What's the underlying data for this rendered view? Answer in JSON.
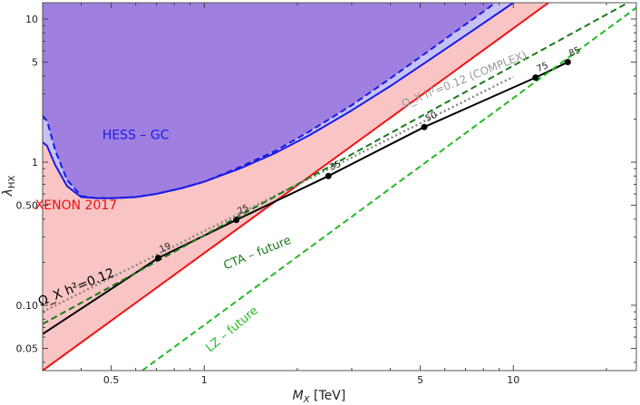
{
  "chart_data": {
    "type": "line",
    "x_scale": "log",
    "y_scale": "log",
    "xlim": [
      0.3,
      25
    ],
    "ylim": [
      0.035,
      13
    ],
    "xlabel_main": "M",
    "xlabel_sub": "X",
    "xlabel_unit": " [TeV]",
    "ylabel_main": "λ",
    "ylabel_sub": "HX",
    "x_ticks": [
      {
        "v": 0.5,
        "label": "0.5"
      },
      {
        "v": 1,
        "label": "1"
      },
      {
        "v": 5,
        "label": "5"
      },
      {
        "v": 10,
        "label": "10"
      }
    ],
    "y_ticks": [
      {
        "v": 0.05,
        "label": "0.05"
      },
      {
        "v": 0.1,
        "label": "0.10"
      },
      {
        "v": 0.5,
        "label": "0.50"
      },
      {
        "v": 1,
        "label": "1"
      },
      {
        "v": 5,
        "label": "5"
      },
      {
        "v": 10,
        "label": "10"
      }
    ],
    "colors": {
      "hess_fill": "#9f7fe0",
      "hess_band": "#c7c2f5",
      "hess_line": "#1a1ae6",
      "xenon_fill": "#f9c4c4",
      "xenon_line": "#ee1111",
      "relic": "#000000",
      "complex": "#888888",
      "cta": "#197a19",
      "lz": "#22bb22"
    },
    "regions": [
      {
        "name": "HESS - GC",
        "label_x": 0.6,
        "label_y": 1.45,
        "color": "#1a1ae6"
      },
      {
        "name": "XENON 2017",
        "label_x": 0.385,
        "label_y": 0.47,
        "color": "#ee1111"
      }
    ],
    "series": [
      {
        "name": "HESS - GC (solid)",
        "style": "solid",
        "x": [
          0.3,
          0.31,
          0.33,
          0.36,
          0.4,
          0.45,
          0.5,
          0.6,
          0.7,
          0.85,
          1.0,
          1.3,
          1.7,
          2.2,
          3.0,
          4.0,
          5.5,
          7.5,
          10,
          13
        ],
        "y": [
          1.38,
          1.3,
          0.95,
          0.68,
          0.57,
          0.56,
          0.56,
          0.57,
          0.6,
          0.66,
          0.73,
          0.9,
          1.16,
          1.55,
          2.3,
          3.4,
          5.4,
          8.5,
          13,
          19
        ]
      },
      {
        "name": "HESS - GC (dashed)",
        "style": "dashed",
        "x": [
          0.3,
          0.31,
          0.33,
          0.36,
          0.4,
          0.45,
          0.5,
          0.6,
          0.7,
          0.85,
          1.0,
          1.3,
          1.7,
          2.2,
          3.0,
          4.0,
          5.5,
          7.5,
          10
        ],
        "y": [
          2.1,
          1.95,
          1.2,
          0.75,
          0.58,
          0.56,
          0.56,
          0.57,
          0.6,
          0.66,
          0.73,
          0.92,
          1.2,
          1.65,
          2.5,
          3.85,
          6.3,
          10.2,
          16
        ]
      },
      {
        "name": "XENON 2017",
        "style": "solid",
        "x": [
          0.3,
          13
        ],
        "y": [
          0.035,
          13
        ]
      },
      {
        "name": "Ω_X h^2=0.12",
        "style": "solid",
        "x": [
          0.3,
          0.71,
          1.27,
          2.52,
          5.15,
          11.8,
          15.0
        ],
        "y": [
          0.063,
          0.214,
          0.395,
          0.8,
          1.76,
          3.9,
          5.0
        ]
      },
      {
        "name": "Ω_X h^2=0.12 (COMPLEX)",
        "style": "dotted",
        "x": [
          0.3,
          10
        ],
        "y": [
          0.09,
          3.95
        ]
      },
      {
        "name": "CTA - future",
        "style": "dashed",
        "x": [
          0.3,
          25
        ],
        "y": [
          0.074,
          14
        ]
      },
      {
        "name": "LZ - future",
        "style": "dashed",
        "x": [
          0.63,
          25
        ],
        "y": [
          0.035,
          12
        ]
      }
    ],
    "relic_points": [
      {
        "x": 0.71,
        "y": 0.214,
        "label": "19"
      },
      {
        "x": 1.27,
        "y": 0.395,
        "label": "25"
      },
      {
        "x": 2.52,
        "y": 0.8,
        "label": "35"
      },
      {
        "x": 5.15,
        "y": 1.76,
        "label": "50"
      },
      {
        "x": 11.8,
        "y": 3.9,
        "label": "75"
      },
      {
        "x": 15.0,
        "y": 5.0,
        "label": "85"
      }
    ],
    "annotations": [
      {
        "text": "HESS – GC",
        "x": 0.6,
        "y": 1.45,
        "color": "#1a1ae6",
        "angle": 0,
        "size": 14
      },
      {
        "text": "XENON 2017",
        "x": 0.385,
        "y": 0.47,
        "color": "#ee1111",
        "angle": 0,
        "size": 14
      },
      {
        "text": "Ω_X h²=0.12",
        "x": 0.39,
        "y": 0.126,
        "color": "#000000",
        "angle": -22,
        "size": 14
      },
      {
        "text": "Ω_X h²=0.12 (COMPLEX)",
        "x": 7.0,
        "y": 3.6,
        "color": "#999999",
        "angle": -22,
        "size": 12
      },
      {
        "text": "CTA – future",
        "x": 1.5,
        "y": 0.22,
        "color": "#197a19",
        "angle": -22,
        "size": 13
      },
      {
        "text": "LZ – future",
        "x": 1.25,
        "y": 0.065,
        "color": "#22bb22",
        "angle": -40,
        "size": 13
      }
    ]
  }
}
